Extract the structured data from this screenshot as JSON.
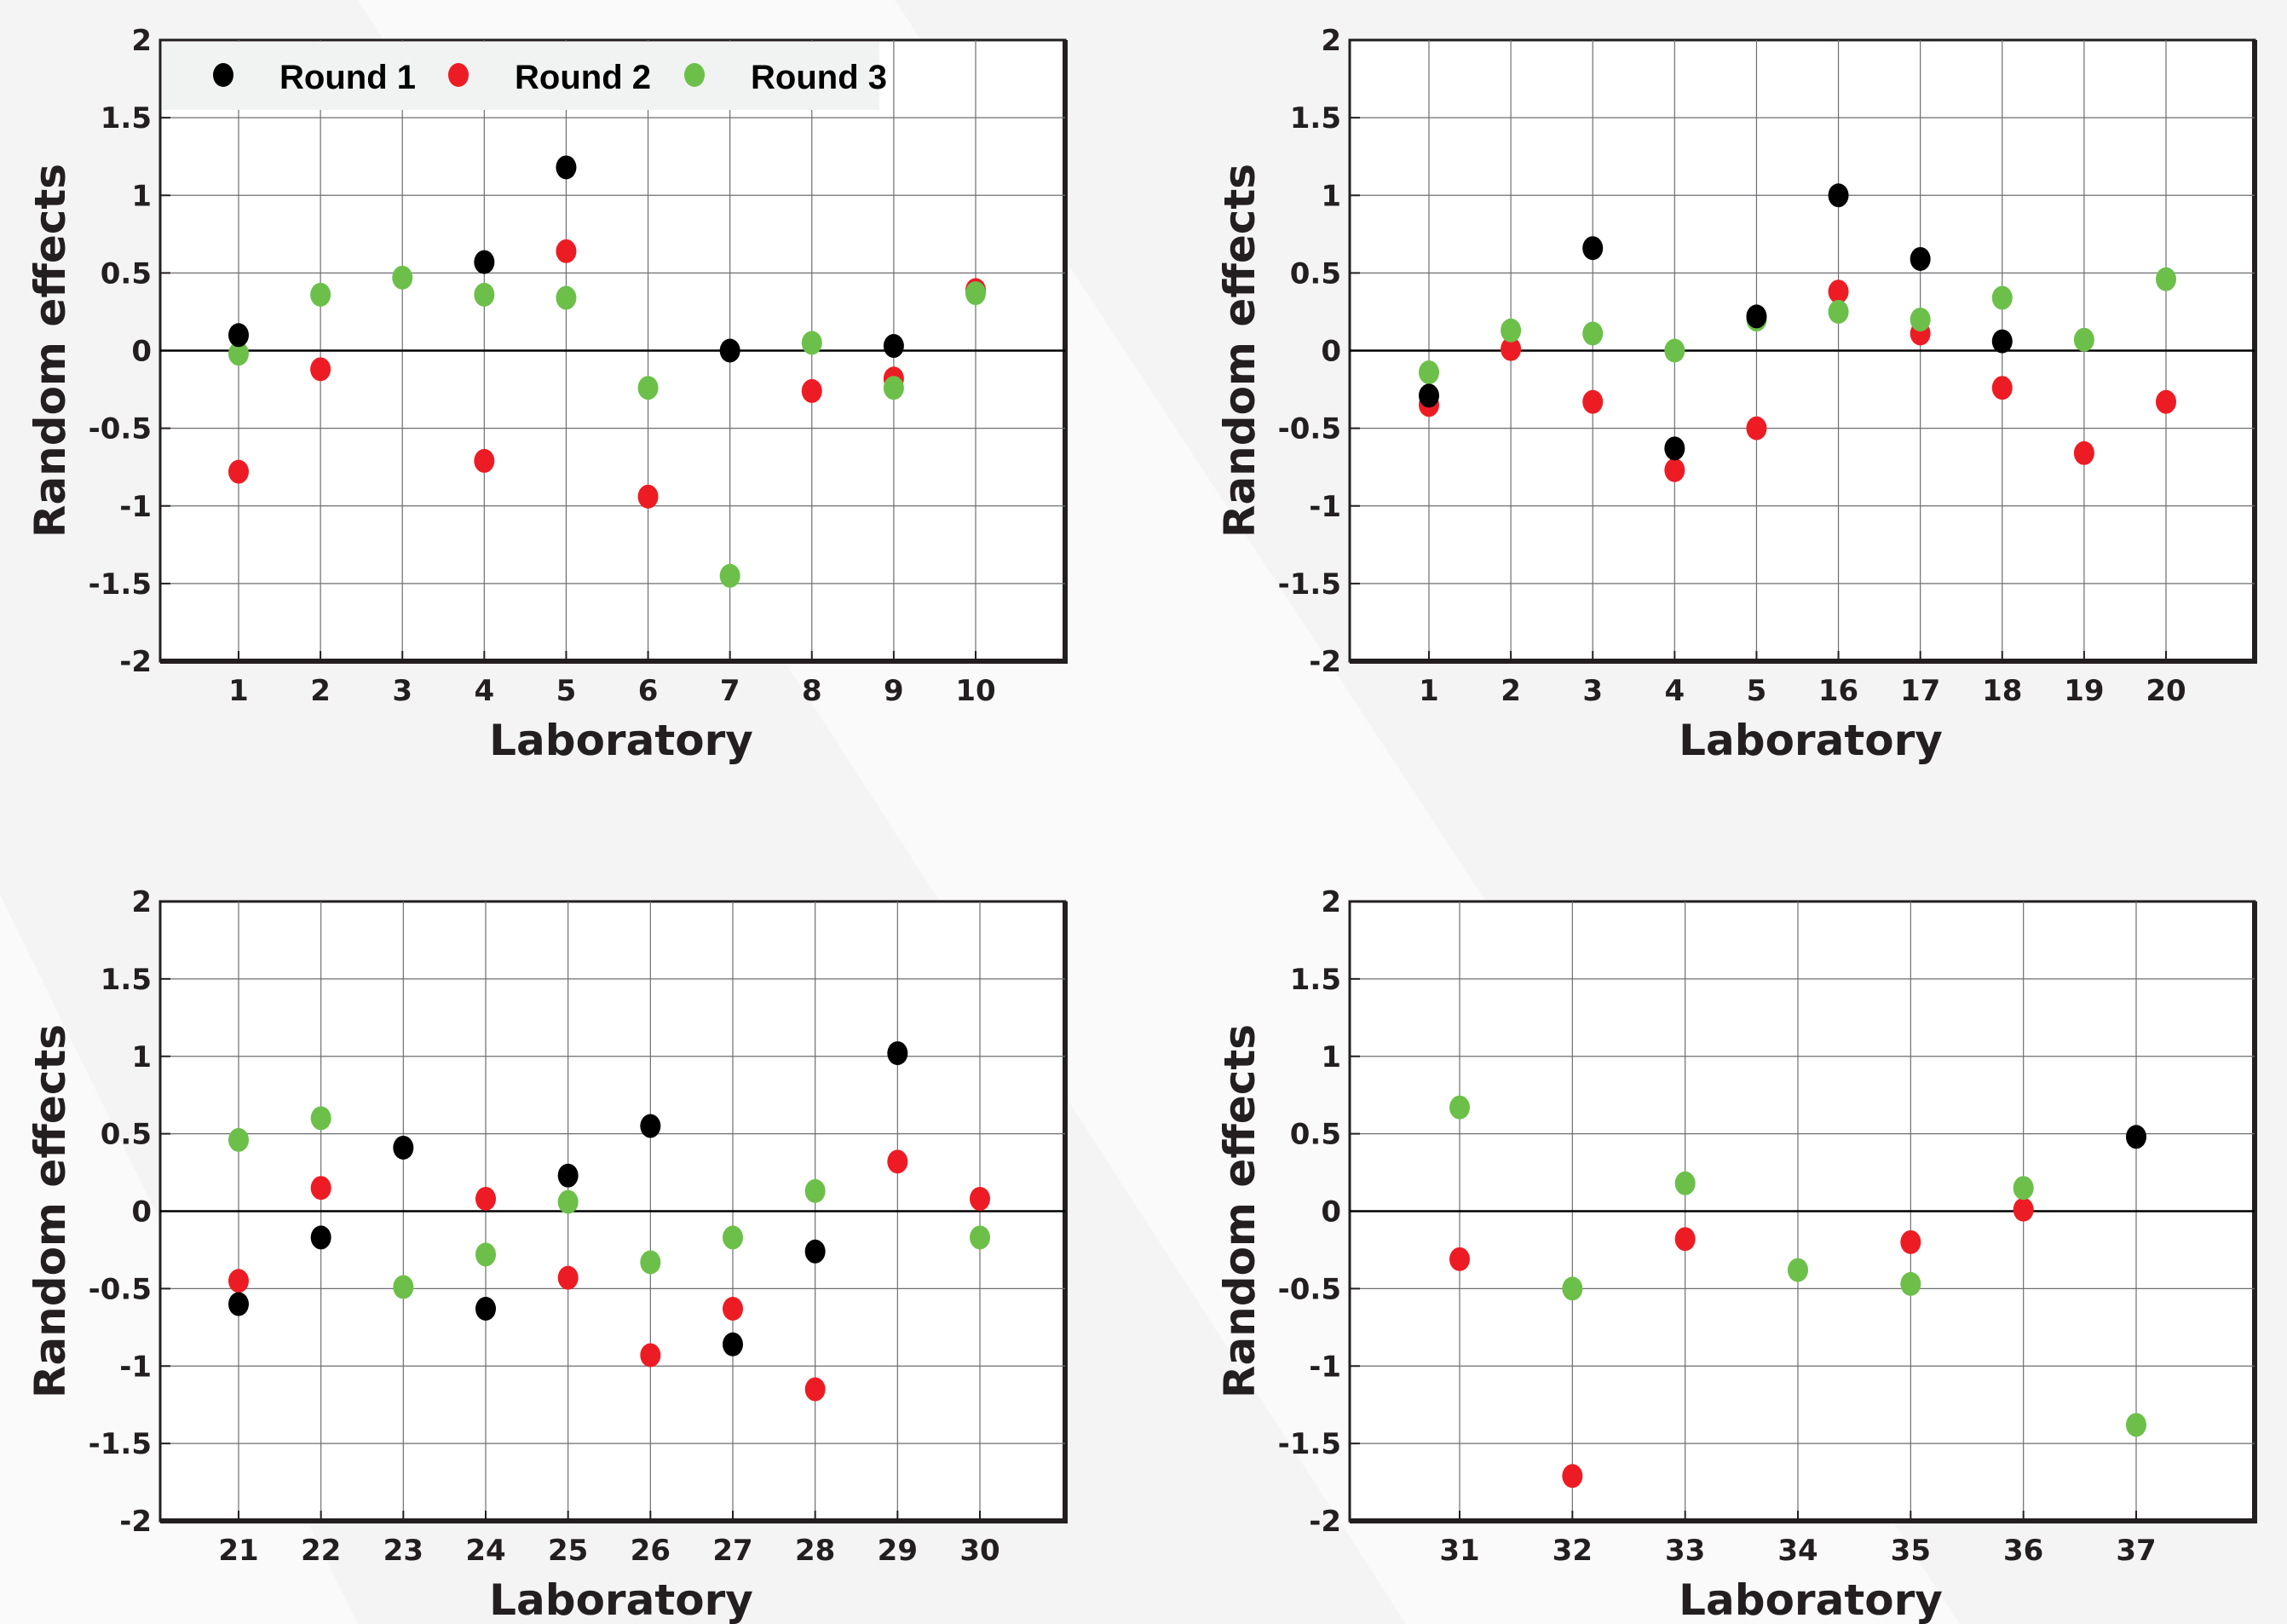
{
  "colors": {
    "round1": "#000000",
    "round2": "#ed1c24",
    "round3": "#6cc04a"
  },
  "legend": {
    "placement": "top-left of first panel",
    "entries": [
      {
        "label": "Round 1",
        "color": "#000000"
      },
      {
        "label": "Round 2",
        "color": "#ed1c24"
      },
      {
        "label": "Round 3",
        "color": "#6cc04a"
      }
    ]
  },
  "chart_data": [
    {
      "type": "scatter",
      "xlabel": "Laboratory",
      "ylabel": "Random effects",
      "ylim": [
        -2,
        2
      ],
      "yticks": [
        "2",
        "1.5",
        "1",
        "0.5",
        "0",
        "-0.5",
        "-1",
        "-1.5",
        "-2"
      ],
      "grid": true,
      "categories": [
        "1",
        "2",
        "3",
        "4",
        "5",
        "6",
        "7",
        "8",
        "9",
        "10"
      ],
      "series": [
        {
          "name": "Round 1",
          "values": [
            0.1,
            null,
            null,
            0.57,
            1.18,
            null,
            0.0,
            null,
            0.03,
            null
          ]
        },
        {
          "name": "Round 2",
          "values": [
            -0.78,
            -0.12,
            null,
            -0.71,
            0.64,
            -0.94,
            null,
            -0.26,
            -0.18,
            0.39
          ]
        },
        {
          "name": "Round 3",
          "values": [
            -0.02,
            0.36,
            0.47,
            0.36,
            0.34,
            -0.24,
            -1.45,
            0.05,
            -0.24,
            0.37
          ]
        }
      ]
    },
    {
      "type": "scatter",
      "xlabel": "Laboratory",
      "ylabel": "Random effects",
      "ylim": [
        -2,
        2
      ],
      "yticks": [
        "2",
        "1.5",
        "1",
        "0.5",
        "0",
        "-0.5",
        "-1",
        "-1.5",
        "-2"
      ],
      "grid": true,
      "categories": [
        "1",
        "2",
        "3",
        "4",
        "5",
        "16",
        "17",
        "18",
        "19",
        "20"
      ],
      "series": [
        {
          "name": "Round 1",
          "values": [
            -0.29,
            null,
            0.66,
            -0.63,
            0.22,
            1.0,
            0.59,
            0.06,
            null,
            null
          ]
        },
        {
          "name": "Round 2",
          "values": [
            -0.35,
            0.01,
            -0.33,
            -0.77,
            -0.5,
            0.38,
            0.11,
            -0.24,
            -0.66,
            -0.33
          ]
        },
        {
          "name": "Round 3",
          "values": [
            -0.14,
            0.13,
            0.11,
            0.0,
            0.2,
            0.25,
            0.2,
            0.34,
            0.07,
            0.46
          ]
        }
      ]
    },
    {
      "type": "scatter",
      "xlabel": "Laboratory",
      "ylabel": "Random effects",
      "ylim": [
        -2,
        2
      ],
      "yticks": [
        "2",
        "1.5",
        "1",
        "0.5",
        "0",
        "-0.5",
        "-1",
        "-1.5",
        "-2"
      ],
      "grid": true,
      "categories": [
        "21",
        "22",
        "23",
        "24",
        "25",
        "26",
        "27",
        "28",
        "29",
        "30"
      ],
      "series": [
        {
          "name": "Round 1",
          "values": [
            -0.6,
            -0.17,
            0.41,
            -0.63,
            0.23,
            0.55,
            -0.86,
            -0.26,
            1.02,
            null
          ]
        },
        {
          "name": "Round 2",
          "values": [
            -0.45,
            0.15,
            null,
            0.08,
            -0.43,
            -0.93,
            -0.63,
            -1.15,
            0.32,
            0.08
          ]
        },
        {
          "name": "Round 3",
          "values": [
            0.46,
            0.6,
            -0.49,
            -0.28,
            0.06,
            -0.33,
            -0.17,
            0.13,
            null,
            -0.17
          ]
        }
      ]
    },
    {
      "type": "scatter",
      "xlabel": "Laboratory",
      "ylabel": "Random effects",
      "ylim": [
        -2,
        2
      ],
      "yticks": [
        "2",
        "1.5",
        "1",
        "0.5",
        "0",
        "-0.5",
        "-1",
        "-1.5",
        "-2"
      ],
      "grid": true,
      "categories": [
        "31",
        "32",
        "33",
        "34",
        "35",
        "36",
        "37"
      ],
      "series": [
        {
          "name": "Round 1",
          "values": [
            null,
            null,
            null,
            null,
            null,
            null,
            0.48
          ]
        },
        {
          "name": "Round 2",
          "values": [
            -0.31,
            -1.71,
            -0.18,
            null,
            -0.2,
            0.01,
            null
          ]
        },
        {
          "name": "Round 3",
          "values": [
            0.67,
            -0.5,
            0.18,
            -0.38,
            -0.47,
            0.15,
            -1.38
          ]
        }
      ]
    }
  ]
}
